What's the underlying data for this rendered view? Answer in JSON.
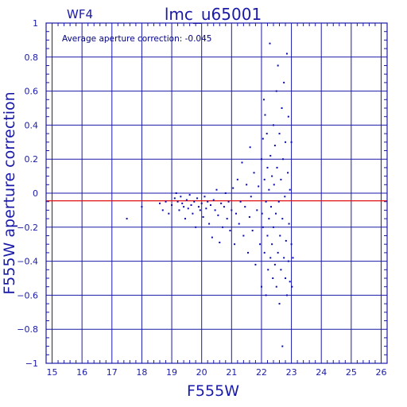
{
  "chart_data": {
    "type": "scatter",
    "title": "lmc_u65001",
    "chip_label": "WF4",
    "annotation": "Average aperture correction: -0.045",
    "xlabel": "F555W",
    "ylabel": "F555W aperture correction",
    "xlim": [
      14.8,
      26.2
    ],
    "ylim": [
      -1,
      1
    ],
    "grid": true,
    "x_ticks": [
      15,
      16,
      17,
      18,
      19,
      20,
      21,
      22,
      23,
      24,
      25,
      26
    ],
    "y_ticks": [
      -1,
      -0.8,
      -0.6,
      -0.4,
      -0.2,
      0,
      0.2,
      0.4,
      0.6,
      0.8,
      1
    ],
    "x_tick_labels": [
      "15",
      "16",
      "17",
      "18",
      "19",
      "20",
      "21",
      "22",
      "23",
      "24",
      "25",
      "26"
    ],
    "y_tick_labels": [
      "−1",
      "−0.8",
      "−0.6",
      "−0.4",
      "−0.2",
      "0",
      "0.2",
      "0.4",
      "0.6",
      "0.8",
      "1"
    ],
    "reference_line": {
      "y": -0.045,
      "color": "#e01010"
    },
    "colors": {
      "axes": "#1a1aa8",
      "points": "#0a0ab0",
      "text": "#1a1aa8"
    },
    "points": [
      [
        17.5,
        -0.15
      ],
      [
        18.0,
        -0.08
      ],
      [
        18.6,
        -0.06
      ],
      [
        18.7,
        -0.1
      ],
      [
        18.8,
        -0.05
      ],
      [
        18.9,
        -0.12
      ],
      [
        19.0,
        -0.07
      ],
      [
        19.1,
        -0.03
      ],
      [
        19.15,
        0.0
      ],
      [
        19.2,
        -0.05
      ],
      [
        19.25,
        -0.1
      ],
      [
        19.3,
        -0.02
      ],
      [
        19.35,
        -0.06
      ],
      [
        19.4,
        -0.08
      ],
      [
        19.45,
        -0.15
      ],
      [
        19.5,
        -0.04
      ],
      [
        19.55,
        -0.09
      ],
      [
        19.6,
        -0.01
      ],
      [
        19.65,
        -0.07
      ],
      [
        19.7,
        -0.12
      ],
      [
        19.75,
        -0.05
      ],
      [
        19.8,
        -0.2
      ],
      [
        19.85,
        -0.03
      ],
      [
        19.9,
        -0.08
      ],
      [
        19.95,
        -0.1
      ],
      [
        20.0,
        -0.06
      ],
      [
        20.05,
        -0.14
      ],
      [
        20.1,
        -0.02
      ],
      [
        20.15,
        -0.09
      ],
      [
        20.2,
        -0.05
      ],
      [
        20.25,
        -0.18
      ],
      [
        20.3,
        -0.07
      ],
      [
        20.35,
        -0.26
      ],
      [
        20.4,
        -0.04
      ],
      [
        20.45,
        -0.1
      ],
      [
        20.5,
        0.02
      ],
      [
        20.55,
        -0.13
      ],
      [
        20.6,
        -0.29
      ],
      [
        20.65,
        -0.06
      ],
      [
        20.7,
        -0.2
      ],
      [
        20.75,
        -0.08
      ],
      [
        20.8,
        0.0
      ],
      [
        20.85,
        -0.15
      ],
      [
        20.9,
        -0.05
      ],
      [
        20.95,
        -0.22
      ],
      [
        21.0,
        -0.1
      ],
      [
        21.05,
        0.03
      ],
      [
        21.1,
        -0.3
      ],
      [
        21.15,
        -0.12
      ],
      [
        21.2,
        0.08
      ],
      [
        21.25,
        -0.18
      ],
      [
        21.3,
        -0.05
      ],
      [
        21.35,
        0.18
      ],
      [
        21.4,
        -0.25
      ],
      [
        21.45,
        -0.08
      ],
      [
        21.5,
        0.05
      ],
      [
        21.55,
        -0.35
      ],
      [
        21.6,
        -0.14
      ],
      [
        21.62,
        0.27
      ],
      [
        21.65,
        -0.02
      ],
      [
        21.7,
        -0.22
      ],
      [
        21.75,
        0.12
      ],
      [
        21.8,
        -0.42
      ],
      [
        21.85,
        -0.1
      ],
      [
        21.9,
        0.04
      ],
      [
        21.95,
        -0.3
      ],
      [
        22.0,
        0.2
      ],
      [
        22.0,
        -0.55
      ],
      [
        22.02,
        -0.12
      ],
      [
        22.05,
        0.32
      ],
      [
        22.05,
        -0.2
      ],
      [
        22.08,
        0.55
      ],
      [
        22.1,
        -0.35
      ],
      [
        22.1,
        0.08
      ],
      [
        22.12,
        0.46
      ],
      [
        22.15,
        -0.6
      ],
      [
        22.15,
        -0.05
      ],
      [
        22.18,
        0.35
      ],
      [
        22.2,
        -0.25
      ],
      [
        22.2,
        0.15
      ],
      [
        22.22,
        -0.45
      ],
      [
        22.25,
        0.02
      ],
      [
        22.25,
        -0.15
      ],
      [
        22.28,
        0.88
      ],
      [
        22.3,
        -0.38
      ],
      [
        22.3,
        0.22
      ],
      [
        22.32,
        -0.08
      ],
      [
        22.35,
        -0.3
      ],
      [
        22.35,
        0.1
      ],
      [
        22.38,
        -0.5
      ],
      [
        22.4,
        0.4
      ],
      [
        22.4,
        -0.2
      ],
      [
        22.42,
        0.05
      ],
      [
        22.45,
        -0.42
      ],
      [
        22.45,
        0.28
      ],
      [
        22.48,
        -0.12
      ],
      [
        22.5,
        0.6
      ],
      [
        22.5,
        -0.55
      ],
      [
        22.52,
        0.15
      ],
      [
        22.55,
        -0.35
      ],
      [
        22.55,
        0.75
      ],
      [
        22.58,
        -0.05
      ],
      [
        22.6,
        -0.65
      ],
      [
        22.6,
        0.35
      ],
      [
        22.62,
        -0.25
      ],
      [
        22.65,
        0.08
      ],
      [
        22.65,
        -0.45
      ],
      [
        22.68,
        0.5
      ],
      [
        22.7,
        -0.15
      ],
      [
        22.7,
        -0.9
      ],
      [
        22.72,
        0.2
      ],
      [
        22.75,
        -0.38
      ],
      [
        22.75,
        0.65
      ],
      [
        22.78,
        -0.02
      ],
      [
        22.8,
        -0.5
      ],
      [
        22.8,
        0.3
      ],
      [
        22.82,
        -0.28
      ],
      [
        22.85,
        0.82
      ],
      [
        22.85,
        -0.6
      ],
      [
        22.88,
        0.12
      ],
      [
        22.9,
        -0.4
      ],
      [
        22.9,
        0.45
      ],
      [
        22.92,
        -0.18
      ],
      [
        22.95,
        -0.52
      ],
      [
        22.95,
        0.02
      ],
      [
        23.0,
        -0.3
      ],
      [
        23.0,
        0.3
      ],
      [
        23.02,
        -0.55
      ],
      [
        23.05,
        -0.38
      ]
    ]
  }
}
